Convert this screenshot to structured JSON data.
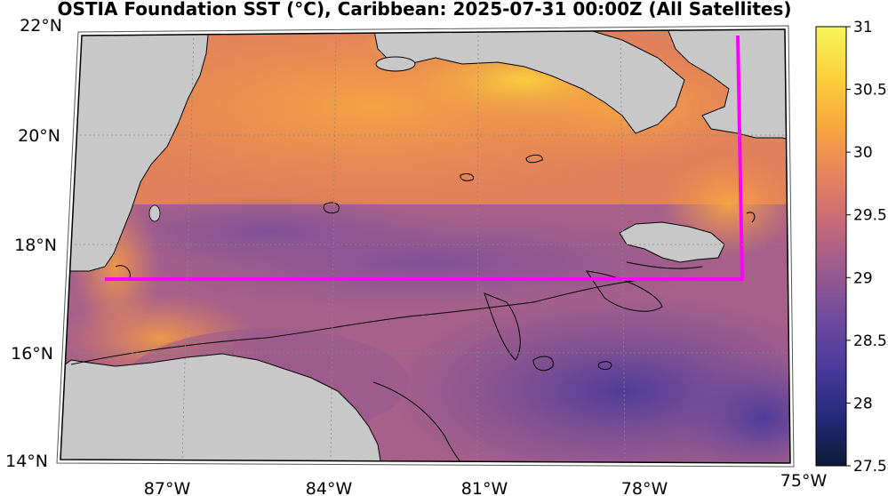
{
  "title": "OSTIA Foundation SST (°C), Caribbean: 2025-07-31 00:00Z (All Satellites)",
  "map": {
    "region": "Caribbean",
    "lat_labels": [
      "22°N",
      "20°N",
      "18°N",
      "16°N",
      "14°N"
    ],
    "lon_labels": [
      "87°W",
      "84°W",
      "81°W",
      "78°W",
      "75°W"
    ],
    "lat_range": [
      14,
      22
    ],
    "lon_range": [
      -89,
      -75
    ],
    "land_color": "#c8c8c8",
    "box_color": "#ff00ff"
  },
  "colorbar": {
    "ticks": [
      "31",
      "30.5",
      "30",
      "29.5",
      "29",
      "28.5",
      "28",
      "27.5"
    ],
    "min": 27.5,
    "max": 31,
    "colormap": "thermal",
    "stops": [
      "#0b1a35",
      "#242a7a",
      "#4b3a9c",
      "#6e4a9e",
      "#9a5a90",
      "#c86a78",
      "#e8845c",
      "#f9a83c",
      "#fbd23c",
      "#f5f55a"
    ]
  }
}
